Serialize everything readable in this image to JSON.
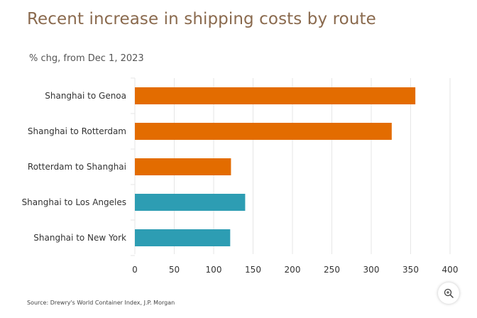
{
  "colors": {
    "europe_route": "#e36c00",
    "us_route": "#2d9db3",
    "title": "#8a6a4e",
    "grid": "#e6e6e6"
  },
  "chart_data": {
    "type": "bar",
    "orientation": "horizontal",
    "title": "Recent increase in shipping costs by route",
    "subtitle": "% chg, from Dec 1, 2023",
    "source": "Source: Drewry's World Container Index, J.P. Morgan",
    "categories": [
      "Shanghai to Genoa",
      "Shanghai to Rotterdam",
      "Rotterdam to Shanghai",
      "Shanghai to Los Angeles",
      "Shanghai to New York"
    ],
    "values": [
      356,
      326,
      122,
      140,
      121
    ],
    "bar_colors": [
      "#e36c00",
      "#e36c00",
      "#e36c00",
      "#2d9db3",
      "#2d9db3"
    ],
    "xlim": [
      0,
      400
    ],
    "xticks": [
      0,
      50,
      100,
      150,
      200,
      250,
      300,
      350,
      400
    ],
    "grid": true,
    "xlabel": "",
    "ylabel": ""
  },
  "ui": {
    "zoom_icon": "zoom-in-icon"
  }
}
